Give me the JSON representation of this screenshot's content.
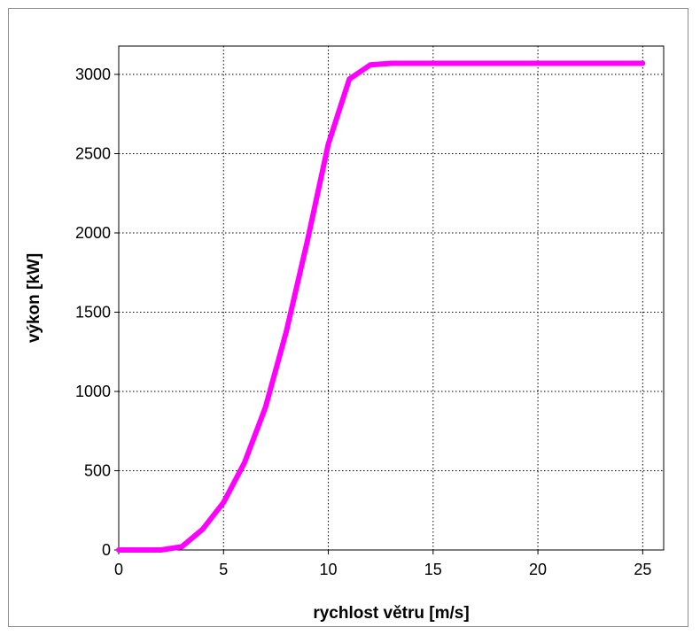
{
  "chart_data": {
    "type": "line",
    "title": "",
    "xlabel": "rychlost větru [m/s]",
    "ylabel": "výkon [kW]",
    "xlim": [
      0,
      26
    ],
    "ylim": [
      0,
      3000
    ],
    "xticks": [
      0,
      5,
      10,
      15,
      20,
      25
    ],
    "yticks": [
      0,
      500,
      1000,
      1500,
      2000,
      2500,
      3000
    ],
    "grid": true,
    "legend": "none",
    "series": [
      {
        "color": "#ff00ff",
        "x": [
          0,
          1,
          2,
          3,
          4,
          5,
          6,
          7,
          8,
          9,
          10,
          11,
          12,
          13,
          14,
          15,
          16,
          17,
          18,
          19,
          20,
          21,
          22,
          23,
          24,
          25
        ],
        "y": [
          0,
          0,
          0,
          20,
          130,
          300,
          550,
          900,
          1380,
          1950,
          2560,
          2970,
          3060,
          3070,
          3070,
          3070,
          3070,
          3070,
          3070,
          3070,
          3070,
          3070,
          3070,
          3070,
          3070,
          3070
        ]
      }
    ]
  }
}
